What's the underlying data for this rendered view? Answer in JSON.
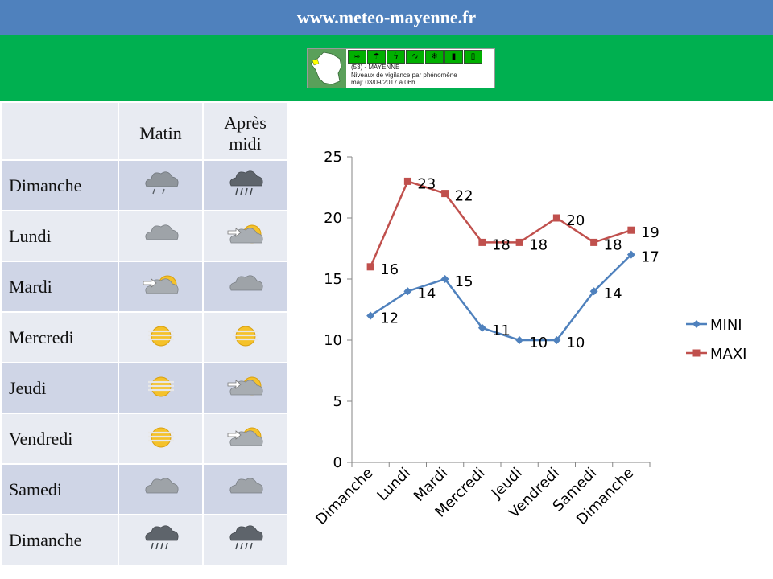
{
  "header": {
    "site": "www.meteo-mayenne.fr"
  },
  "vigilance": {
    "line1": "(53) - MAYENNE",
    "line2": "Niveaux de vigilance par phénomène",
    "line3": "maj: 03/09/2017 à 06h",
    "icons": [
      "wind-icon",
      "rain-flood-icon",
      "thunderstorm-icon",
      "flood-icon",
      "snow-ice-icon",
      "heat-icon",
      "cold-icon"
    ],
    "level_color": "#00b000"
  },
  "table": {
    "headers": {
      "morning": "Matin",
      "afternoon_l1": "Après",
      "afternoon_l2": "midi"
    },
    "rows": [
      {
        "day": "Dimanche",
        "morning": "cloud-rain-light-icon",
        "afternoon": "cloud-rain-heavy-icon"
      },
      {
        "day": "Lundi",
        "morning": "cloud-icon",
        "afternoon": "sun-wind-cloud-icon"
      },
      {
        "day": "Mardi",
        "morning": "sun-wind-cloud-icon",
        "afternoon": "cloud-icon"
      },
      {
        "day": "Mercredi",
        "morning": "sun-mist-icon",
        "afternoon": "sun-mist-icon"
      },
      {
        "day": "Jeudi",
        "morning": "sun-mist-icon",
        "afternoon": "sun-wind-cloud-icon"
      },
      {
        "day": "Vendredi",
        "morning": "sun-mist-icon",
        "afternoon": "sun-wind-cloud-icon"
      },
      {
        "day": "Samedi",
        "morning": "cloud-icon",
        "afternoon": "cloud-icon"
      },
      {
        "day": "Dimanche",
        "morning": "cloud-rain-heavy-icon",
        "afternoon": "cloud-rain-heavy-icon"
      }
    ]
  },
  "chart_data": {
    "type": "line",
    "categories": [
      "Dimanche",
      "Lundi",
      "Mardi",
      "Mercredi",
      "Jeudi",
      "Vendredi",
      "Samedi",
      "Dimanche"
    ],
    "ylim": [
      0,
      25
    ],
    "yticks": [
      0,
      5,
      10,
      15,
      20,
      25
    ],
    "grid": false,
    "legend": "right",
    "series": [
      {
        "name": "MINI",
        "values": [
          12,
          14,
          15,
          11,
          10,
          10,
          14,
          17
        ],
        "color": "#4f81bd",
        "marker": "diamond"
      },
      {
        "name": "MAXI",
        "values": [
          16,
          23,
          22,
          18,
          18,
          20,
          18,
          19
        ],
        "color": "#c0504d",
        "marker": "square"
      }
    ]
  }
}
